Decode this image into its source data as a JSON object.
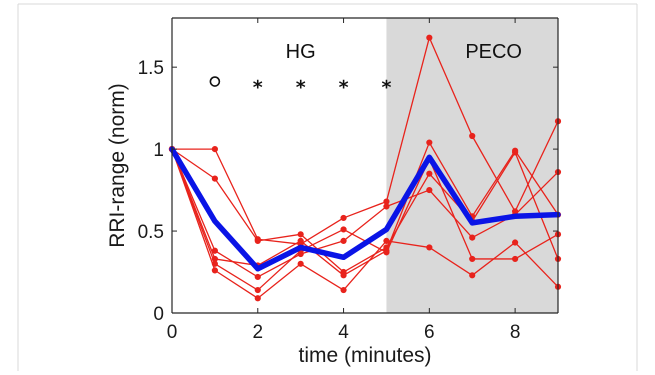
{
  "chart_data": {
    "type": "line",
    "title": "",
    "xlabel": "time (minutes)",
    "ylabel": "RRI-range (norm)",
    "xlim": [
      0,
      9
    ],
    "ylim": [
      0,
      1.8
    ],
    "xticks": [
      0,
      2,
      4,
      6,
      8
    ],
    "yticks": [
      0,
      0.5,
      1,
      1.5
    ],
    "xtick_labels": [
      "0",
      "2",
      "4",
      "6",
      "8"
    ],
    "ytick_labels": [
      "0",
      "0.5",
      "1",
      "1.5"
    ],
    "grid": false,
    "shaded_region": {
      "x_start": 5,
      "x_end": 9,
      "color": "#d9d9d9"
    },
    "region_labels": [
      {
        "text": "HG",
        "x": 3,
        "y": 1.6
      },
      {
        "text": "PECO",
        "x": 7.5,
        "y": 1.6
      }
    ],
    "significance_markers": [
      {
        "x": 1,
        "y": 1.4,
        "symbol": "o"
      },
      {
        "x": 2,
        "y": 1.4,
        "symbol": "*"
      },
      {
        "x": 3,
        "y": 1.4,
        "symbol": "*"
      },
      {
        "x": 4,
        "y": 1.4,
        "symbol": "*"
      },
      {
        "x": 5,
        "y": 1.4,
        "symbol": "*"
      }
    ],
    "x": [
      0,
      1,
      2,
      3,
      4,
      5,
      6,
      7,
      8,
      9
    ],
    "series": [
      {
        "values": [
          1.0,
          1.0,
          0.45,
          0.42,
          0.58,
          0.68,
          1.68,
          1.08,
          0.62,
          1.17
        ],
        "color": "#e8231c",
        "style": "individual"
      },
      {
        "values": [
          1.0,
          0.82,
          0.44,
          0.48,
          0.25,
          0.4,
          0.85,
          0.56,
          0.98,
          0.33
        ],
        "color": "#e8231c",
        "style": "individual"
      },
      {
        "values": [
          1.0,
          0.38,
          0.22,
          0.36,
          0.44,
          0.65,
          0.75,
          0.46,
          0.6,
          0.86
        ],
        "color": "#e8231c",
        "style": "individual"
      },
      {
        "values": [
          1.0,
          0.3,
          0.14,
          0.38,
          0.51,
          0.37,
          0.94,
          0.33,
          0.33,
          0.48
        ],
        "color": "#e8231c",
        "style": "individual"
      },
      {
        "values": [
          1.0,
          0.26,
          0.09,
          0.3,
          0.14,
          0.44,
          0.4,
          0.23,
          0.43,
          0.16
        ],
        "color": "#e8231c",
        "style": "individual"
      },
      {
        "values": [
          1.0,
          0.33,
          0.29,
          0.44,
          0.23,
          0.38,
          1.04,
          0.59,
          0.99,
          0.6
        ],
        "color": "#e8231c",
        "style": "individual"
      },
      {
        "values": [
          1.0,
          0.56,
          0.27,
          0.4,
          0.34,
          0.51,
          0.95,
          0.55,
          0.59,
          0.6
        ],
        "color": "#0a14e6",
        "style": "mean"
      }
    ]
  }
}
